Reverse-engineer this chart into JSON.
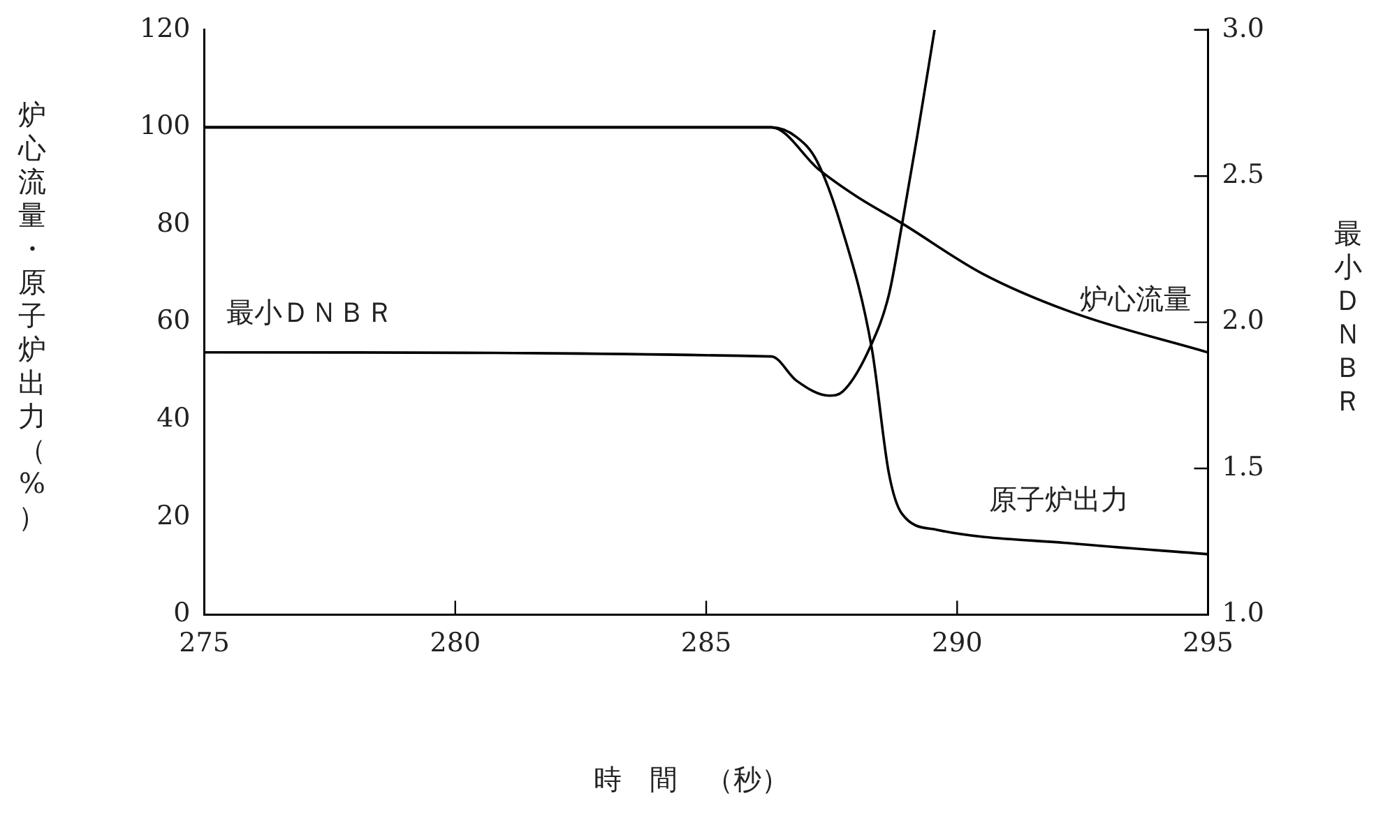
{
  "chart_data": {
    "type": "line",
    "xlabel": "時　間　（秒）",
    "ylabel": "炉心流量・原子炉出力（%）",
    "y2label": "最小ＤＮＢＲ",
    "xlim": [
      275,
      295
    ],
    "xticks": [
      275,
      280,
      285,
      290,
      295
    ],
    "ylim": [
      0,
      120
    ],
    "yticks": [
      0,
      20,
      40,
      60,
      80,
      100,
      120
    ],
    "y2lim": [
      1.0,
      3.0
    ],
    "y2ticks": [
      {
        "value": 1,
        "label": "1.0"
      },
      {
        "value": 1.5,
        "label": "1.5"
      },
      {
        "value": 2,
        "label": "2.0"
      },
      {
        "value": 2.5,
        "label": "2.5"
      },
      {
        "value": 3,
        "label": "3.0"
      }
    ],
    "grid": false,
    "legend": false,
    "marker": "none",
    "line_style": "solid",
    "series": [
      {
        "name": "炉心流量",
        "color": "#000000",
        "x": [
          275,
          286.3,
          287.25,
          288.0,
          288.9,
          290.5,
          292.3,
          295
        ],
        "values": [
          100,
          100,
          91.3,
          85.8,
          80.3,
          70,
          62,
          53.8
        ]
      },
      {
        "name": "原子炉出力",
        "color": "#000000",
        "x": [
          275,
          286.3,
          286.8,
          287.2,
          287.7,
          288.3,
          288.64,
          288.9,
          289.6,
          292.3,
          295
        ],
        "values": [
          100,
          100,
          98,
          93.2,
          79.4,
          54.6,
          29,
          20.7,
          17.4,
          14.6,
          12.4
        ]
      },
      {
        "name": "最小ＤＮＢＲ",
        "color": "#000000",
        "axis": "y2",
        "x": [
          275,
          286.3,
          286.8,
          287.45,
          287.72,
          288.28,
          288.64,
          288.9,
          289.2,
          289.55
        ],
        "values": [
          1.897,
          1.883,
          1.8,
          1.749,
          1.763,
          1.92,
          2.094,
          2.333,
          2.632,
          3.0
        ]
      }
    ]
  }
}
